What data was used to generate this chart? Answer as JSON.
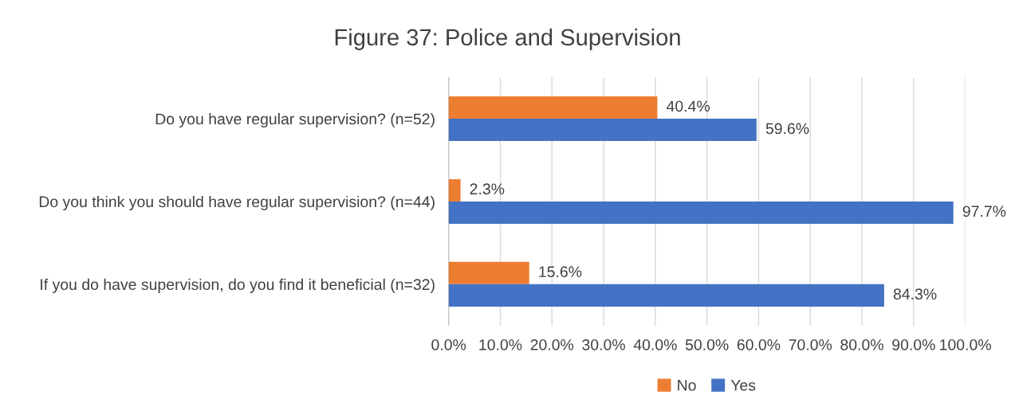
{
  "chart_data": {
    "type": "bar",
    "orientation": "horizontal",
    "title": "Figure 37: Police and Supervision",
    "categories": [
      "Do you have regular supervision? (n=52)",
      "Do you think you should have regular supervision? (n=44)",
      "If you do have supervision, do you find it beneficial (n=32)"
    ],
    "series": [
      {
        "name": "No",
        "color": "#ed7d31",
        "values": [
          40.4,
          2.3,
          15.6
        ],
        "value_labels": [
          "40.4%",
          "2.3%",
          "15.6%"
        ]
      },
      {
        "name": "Yes",
        "color": "#4472c4",
        "values": [
          59.6,
          97.7,
          84.3
        ],
        "value_labels": [
          "59.6%",
          "97.7%",
          "84.3%"
        ]
      }
    ],
    "xlim": [
      0,
      100
    ],
    "xticks": [
      {
        "value": 0,
        "label": "0.0%"
      },
      {
        "value": 10,
        "label": "10.0%"
      },
      {
        "value": 20,
        "label": "20.0%"
      },
      {
        "value": 30,
        "label": "30.0%"
      },
      {
        "value": 40,
        "label": "40.0%"
      },
      {
        "value": 50,
        "label": "50.0%"
      },
      {
        "value": 60,
        "label": "60.0%"
      },
      {
        "value": 70,
        "label": "70.0%"
      },
      {
        "value": 80,
        "label": "80.0%"
      },
      {
        "value": 90,
        "label": "90.0%"
      },
      {
        "value": 100,
        "label": "100.0%"
      }
    ],
    "grid": "x",
    "legend": "bottom"
  }
}
